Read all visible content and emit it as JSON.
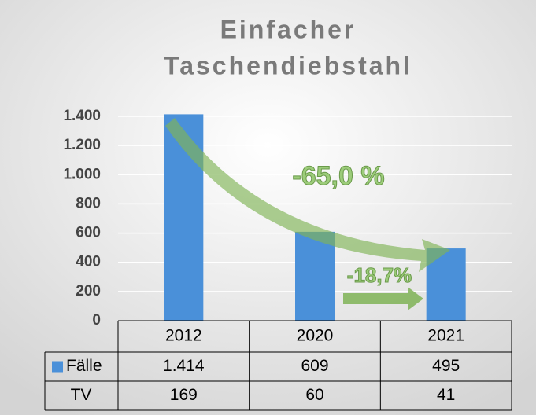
{
  "chart_data": {
    "type": "bar",
    "title": [
      "Einfacher",
      "Taschendiebstahl"
    ],
    "categories": [
      "2012",
      "2020",
      "2021"
    ],
    "series": [
      {
        "name": "Fälle",
        "color": "#4a90d9",
        "values": [
          1414,
          609,
          495
        ],
        "value_labels": [
          "1.414",
          "609",
          "495"
        ]
      }
    ],
    "table_rows": [
      {
        "name": "TV",
        "values": [
          169,
          60,
          41
        ]
      }
    ],
    "ylim": [
      0,
      1400
    ],
    "yticks": [
      0,
      200,
      400,
      600,
      800,
      {
        "value": 1000,
        "label": "1.000"
      },
      {
        "value": 1200,
        "label": "1.200"
      },
      {
        "value": 1400,
        "label": "1.400"
      }
    ],
    "grid": true,
    "annotations": [
      "-65,0 %",
      "-18,7%"
    ]
  }
}
